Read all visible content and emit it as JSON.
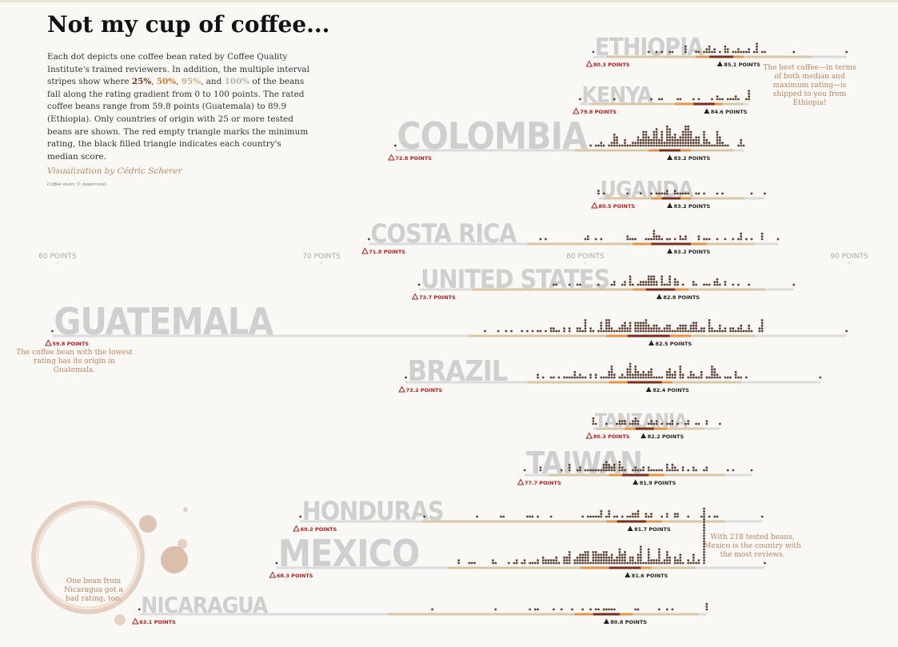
{
  "header": {
    "title": "Not my cup of coffee...",
    "subtitle_parts": [
      "Each dot depicts one coffee bean rated by Coffee Quality Institute's trained reviewers. In addition, the multiple interval stripes show where ",
      "25%",
      ", ",
      "50%",
      ", ",
      "95%",
      ", and ",
      "100%",
      " of the beans fall along the rating gradient from 0 to 100 points. The rated coffee beans range from 59.8 points (Guatemala) to 89.9 (Ethiopia). Only countries of origin with 25 or more tested beans are shown. The red empty triangle marks the minimum rating, the black filled triangle indicates each country's median score."
    ],
    "credit": "Visualization by Cédric Scherer",
    "image_credit": "Coffee stain: © papercavil."
  },
  "annotations": {
    "ethiopia": "The best coffee—in terms of both median and maximum rating—is shipped to you from Ethiopia!",
    "guatemala": "The coffee bean with the lowest rating has its origin in Guatemala.",
    "mexico": "With 218 tested beans, Mexico is the country with the most reviews.",
    "nicaragua": "One bean from Nicaragua got a bad rating, too."
  },
  "colors": {
    "background": "#faf8f4",
    "stripe_100": "#dcdcdc",
    "stripe_95": "#d8c7a6",
    "stripe_50": "#e59548",
    "stripe_25": "#7a2f1c",
    "dots": "#5a4034",
    "min_marker": "#b21e1e",
    "median_marker": "#222222",
    "country_label": "#cfcfcf"
  },
  "chart_data": {
    "type": "dot-interval",
    "xlim": [
      59,
      91
    ],
    "x_ticks": [
      60,
      70,
      80,
      90
    ],
    "x_tick_labels": [
      "60 POINTS",
      "70 POINTS",
      "80 POINTS",
      "90 POINTS"
    ],
    "countries": [
      {
        "name": "ETHIOPIA",
        "min": 80.3,
        "median": 85.1,
        "max": 89.9,
        "q95": [
          80.8,
          88.6
        ],
        "q50": [
          84.2,
          86.0
        ],
        "q25": [
          84.7,
          85.6
        ],
        "min_label": "80.3 POINTS",
        "median_label": "85.1 POINTS",
        "n": 44
      },
      {
        "name": "KENYA",
        "min": 79.8,
        "median": 84.6,
        "max": 86.2,
        "q95": [
          80.2,
          86.0
        ],
        "q50": [
          83.4,
          85.2
        ],
        "q25": [
          84.1,
          84.9
        ],
        "min_label": "79.8 POINTS",
        "median_label": "84.6 POINTS",
        "n": 25
      },
      {
        "name": "COLOMBIA",
        "min": 72.8,
        "median": 83.2,
        "max": 86.0,
        "q95": [
          79.6,
          85.6
        ],
        "q50": [
          82.4,
          84.0
        ],
        "q25": [
          82.8,
          83.6
        ],
        "min_label": "72.8 POINTS",
        "median_label": "83.2 POINTS",
        "n": 183
      },
      {
        "name": "UGANDA",
        "min": 80.5,
        "median": 83.2,
        "max": 86.8,
        "q95": [
          80.7,
          86.0
        ],
        "q50": [
          82.5,
          84.0
        ],
        "q25": [
          82.9,
          83.6
        ],
        "min_label": "80.5 POINTS",
        "median_label": "83.2 POINTS",
        "n": 26
      },
      {
        "name": "COSTA RICA",
        "min": 71.8,
        "median": 83.2,
        "max": 87.3,
        "q95": [
          77.8,
          86.4
        ],
        "q50": [
          81.8,
          84.6
        ],
        "q25": [
          82.5,
          84.0
        ],
        "min_label": "71.8 POINTS",
        "median_label": "83.2 POINTS",
        "n": 51
      },
      {
        "name": "UNITED STATES",
        "min": 73.7,
        "median": 82.8,
        "max": 87.9,
        "q95": [
          75.7,
          86.8
        ],
        "q50": [
          81.8,
          83.9
        ],
        "q25": [
          82.3,
          83.4
        ],
        "min_label": "73.7 POINTS",
        "median_label": "82.8 POINTS",
        "n": 73
      },
      {
        "name": "GUATEMALA",
        "min": 59.8,
        "median": 82.5,
        "max": 89.9,
        "q95": [
          75.6,
          86.4
        ],
        "q50": [
          80.8,
          84.0
        ],
        "q25": [
          81.6,
          83.2
        ],
        "min_label": "59.8 POINTS",
        "median_label": "82.5 POINTS",
        "n": 181
      },
      {
        "name": "BRAZIL",
        "min": 73.2,
        "median": 82.4,
        "max": 88.9,
        "q95": [
          77.8,
          85.9
        ],
        "q50": [
          80.9,
          83.3
        ],
        "q25": [
          81.6,
          82.9
        ],
        "min_label": "73.2 POINTS",
        "median_label": "82.4 POINTS",
        "n": 132
      },
      {
        "name": "TANZANIA",
        "min": 80.3,
        "median": 82.2,
        "max": 85.1,
        "q95": [
          80.4,
          84.5
        ],
        "q50": [
          81.5,
          83.1
        ],
        "q25": [
          81.9,
          82.6
        ],
        "min_label": "80.3 POINTS",
        "median_label": "82.2 POINTS",
        "n": 40
      },
      {
        "name": "TAIWAN",
        "min": 77.7,
        "median": 81.9,
        "max": 86.3,
        "q95": [
          78.6,
          85.3
        ],
        "q50": [
          80.9,
          83.0
        ],
        "q25": [
          81.4,
          82.4
        ],
        "min_label": "77.7 POINTS",
        "median_label": "81.9 POINTS",
        "n": 75
      },
      {
        "name": "HONDURAS",
        "min": 69.2,
        "median": 81.7,
        "max": 86.7,
        "q95": [
          73.8,
          85.3
        ],
        "q50": [
          80.8,
          82.9
        ],
        "q25": [
          81.2,
          82.3
        ],
        "min_label": "69.2 POINTS",
        "median_label": "81.7 POINTS",
        "n": 53
      },
      {
        "name": "MEXICO",
        "min": 68.3,
        "median": 81.6,
        "max": 86.8,
        "q95": [
          74.8,
          84.2
        ],
        "q50": [
          79.8,
          82.5
        ],
        "q25": [
          80.9,
          82.1
        ],
        "min_label": "68.3 POINTS",
        "median_label": "81.6 POINTS",
        "n": 218
      },
      {
        "name": "NICARAGUA",
        "min": 63.1,
        "median": 80.8,
        "max": 84.6,
        "q95": [
          72.5,
          84.3
        ],
        "q50": [
          79.6,
          81.8
        ],
        "q25": [
          80.3,
          81.3
        ],
        "min_label": "63.1 POINTS",
        "median_label": "80.8 POINTS",
        "n": 26
      }
    ]
  }
}
